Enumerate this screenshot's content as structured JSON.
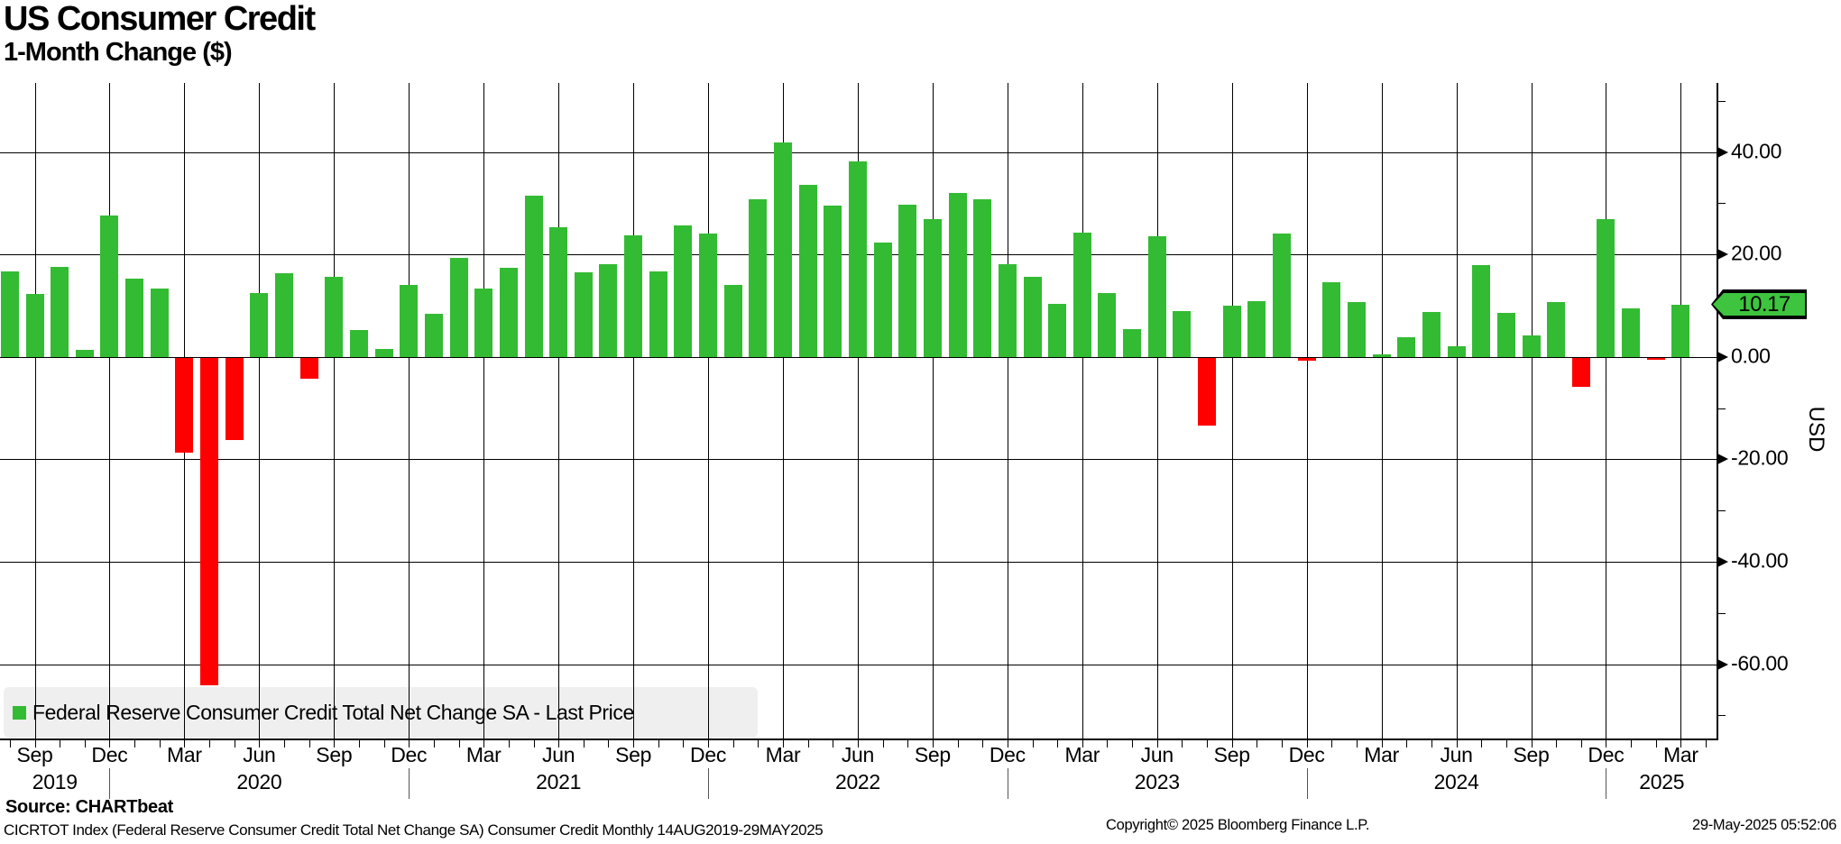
{
  "header": {
    "title": "US Consumer Credit",
    "subtitle": "1-Month Change ($)"
  },
  "legend": {
    "series_label": "Federal Reserve Consumer Credit Total Net Change SA - Last Price"
  },
  "axis": {
    "unit_label": "USD",
    "last_price_label": "10.17",
    "y_tick_labels": [
      "40.00",
      "20.00",
      "0.00",
      "-20.00",
      "-40.00",
      "-60.00"
    ]
  },
  "footer": {
    "source": "Source: CHARTbeat",
    "description": "CICRTOT Index (Federal Reserve Consumer Credit Total Net Change SA) Consumer Credit  Monthly 14AUG2019-29MAY2025",
    "copyright": "Copyright© 2025 Bloomberg Finance L.P.",
    "timestamp": "29-May-2025 05:52:06"
  },
  "colors": {
    "positive": "#33bb33",
    "negative": "#ff0000",
    "tag_fill": "#3ec43e",
    "legend_bg": "#efefef"
  },
  "chart_data": {
    "type": "bar",
    "title": "US Consumer Credit — 1-Month Change ($)",
    "xlabel": "",
    "ylabel": "USD",
    "ylim": [
      -75,
      55
    ],
    "grid": true,
    "legend_position": "bottom-left",
    "y_major_gridlines": [
      40,
      20,
      0,
      -20,
      -40,
      -60
    ],
    "y_minor_ticks": [
      50,
      30,
      10,
      -10,
      -30,
      -50,
      -70
    ],
    "x_tick_months": [
      "Sep",
      "Dec",
      "Mar",
      "Jun",
      "Sep",
      "Dec",
      "Mar",
      "Jun",
      "Sep",
      "Dec",
      "Mar",
      "Jun",
      "Sep",
      "Dec",
      "Mar",
      "Jun",
      "Sep",
      "Dec",
      "Mar",
      "Jun",
      "Sep",
      "Dec",
      "Mar"
    ],
    "x_year_labels": [
      "2019",
      "2020",
      "2021",
      "2022",
      "2023",
      "2024",
      "2025"
    ],
    "last_price": 10.17,
    "series": [
      {
        "name": "Federal Reserve Consumer Credit Total Net Change SA",
        "points": [
          {
            "m": "Aug 2019",
            "v": 16.6
          },
          {
            "m": "Sep 2019",
            "v": 12.2
          },
          {
            "m": "Oct 2019",
            "v": 17.5
          },
          {
            "m": "Nov 2019",
            "v": 1.4
          },
          {
            "m": "Dec 2019",
            "v": 27.6
          },
          {
            "m": "Jan 2020",
            "v": 15.2
          },
          {
            "m": "Feb 2020",
            "v": 13.4
          },
          {
            "m": "Mar 2020",
            "v": -18.8
          },
          {
            "m": "Apr 2020",
            "v": -64.1
          },
          {
            "m": "May 2020",
            "v": -16.3
          },
          {
            "m": "Jun 2020",
            "v": 12.4
          },
          {
            "m": "Jul 2020",
            "v": 16.3
          },
          {
            "m": "Aug 2020",
            "v": -4.2
          },
          {
            "m": "Sep 2020",
            "v": 15.6
          },
          {
            "m": "Oct 2020",
            "v": 5.2
          },
          {
            "m": "Nov 2020",
            "v": 1.6
          },
          {
            "m": "Dec 2020",
            "v": 14.0
          },
          {
            "m": "Jan 2021",
            "v": 8.4
          },
          {
            "m": "Feb 2021",
            "v": 19.4
          },
          {
            "m": "Mar 2021",
            "v": 13.3
          },
          {
            "m": "Apr 2021",
            "v": 17.4
          },
          {
            "m": "May 2021",
            "v": 31.5
          },
          {
            "m": "Jun 2021",
            "v": 25.3
          },
          {
            "m": "Jul 2021",
            "v": 16.5
          },
          {
            "m": "Aug 2021",
            "v": 18.1
          },
          {
            "m": "Sep 2021",
            "v": 23.8
          },
          {
            "m": "Oct 2021",
            "v": 16.7
          },
          {
            "m": "Nov 2021",
            "v": 25.6
          },
          {
            "m": "Dec 2021",
            "v": 24.0
          },
          {
            "m": "Jan 2022",
            "v": 14.1
          },
          {
            "m": "Feb 2022",
            "v": 30.8
          },
          {
            "m": "Mar 2022",
            "v": 41.9
          },
          {
            "m": "Apr 2022",
            "v": 33.5
          },
          {
            "m": "May 2022",
            "v": 29.5
          },
          {
            "m": "Jun 2022",
            "v": 38.1
          },
          {
            "m": "Jul 2022",
            "v": 22.3
          },
          {
            "m": "Aug 2022",
            "v": 29.7
          },
          {
            "m": "Sep 2022",
            "v": 26.9
          },
          {
            "m": "Oct 2022",
            "v": 32.0
          },
          {
            "m": "Nov 2022",
            "v": 30.8
          },
          {
            "m": "Dec 2022",
            "v": 18.1
          },
          {
            "m": "Jan 2023",
            "v": 15.6
          },
          {
            "m": "Feb 2023",
            "v": 10.4
          },
          {
            "m": "Mar 2023",
            "v": 24.3
          },
          {
            "m": "Apr 2023",
            "v": 12.5
          },
          {
            "m": "May 2023",
            "v": 5.4
          },
          {
            "m": "Jun 2023",
            "v": 23.6
          },
          {
            "m": "Jul 2023",
            "v": 8.9
          },
          {
            "m": "Aug 2023",
            "v": -13.4
          },
          {
            "m": "Sep 2023",
            "v": 10.0
          },
          {
            "m": "Oct 2023",
            "v": 10.8
          },
          {
            "m": "Nov 2023",
            "v": 24.1
          },
          {
            "m": "Dec 2023",
            "v": -0.7
          },
          {
            "m": "Jan 2024",
            "v": 14.6
          },
          {
            "m": "Feb 2024",
            "v": 10.7
          },
          {
            "m": "Mar 2024",
            "v": 0.4
          },
          {
            "m": "Apr 2024",
            "v": 3.8
          },
          {
            "m": "May 2024",
            "v": 8.8
          },
          {
            "m": "Jun 2024",
            "v": 2.0
          },
          {
            "m": "Jul 2024",
            "v": 17.9
          },
          {
            "m": "Aug 2024",
            "v": 8.6
          },
          {
            "m": "Sep 2024",
            "v": 4.2
          },
          {
            "m": "Oct 2024",
            "v": 10.7
          },
          {
            "m": "Nov 2024",
            "v": -5.8
          },
          {
            "m": "Dec 2024",
            "v": 26.9
          },
          {
            "m": "Jan 2025",
            "v": 9.4
          },
          {
            "m": "Feb 2025",
            "v": -0.6
          },
          {
            "m": "Mar 2025",
            "v": 10.17
          }
        ]
      }
    ]
  }
}
